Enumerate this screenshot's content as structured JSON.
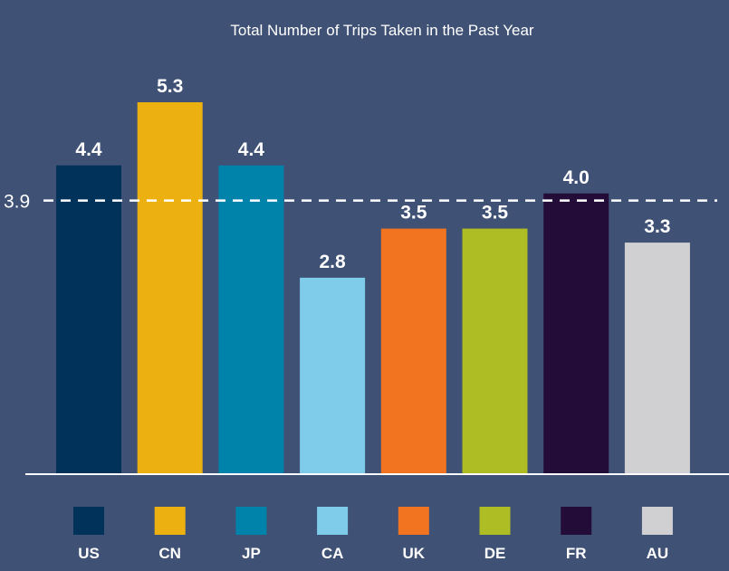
{
  "chart_data": {
    "type": "bar",
    "title": "Total Number of Trips Taken in the Past Year",
    "xlabel": "",
    "ylabel": "",
    "ylim": [
      0,
      5.3
    ],
    "grid": false,
    "legend_placement": "bottom",
    "categories": [
      "US",
      "CN",
      "JP",
      "CA",
      "UK",
      "DE",
      "FR",
      "AU"
    ],
    "values": [
      4.4,
      5.3,
      4.4,
      2.8,
      3.5,
      3.5,
      4.0,
      3.3
    ],
    "value_labels": [
      "4.4",
      "5.3",
      "4.4",
      "2.8",
      "3.5",
      "3.5",
      "4.0",
      "3.3"
    ],
    "colors": [
      "#00325a",
      "#edb011",
      "#0083ab",
      "#7ecce9",
      "#f27421",
      "#adbd23",
      "#230c38",
      "#d0d0d2"
    ],
    "reference_line": {
      "value": 3.9,
      "label": "3.9",
      "style": "dashed",
      "color": "#ffffff"
    }
  }
}
